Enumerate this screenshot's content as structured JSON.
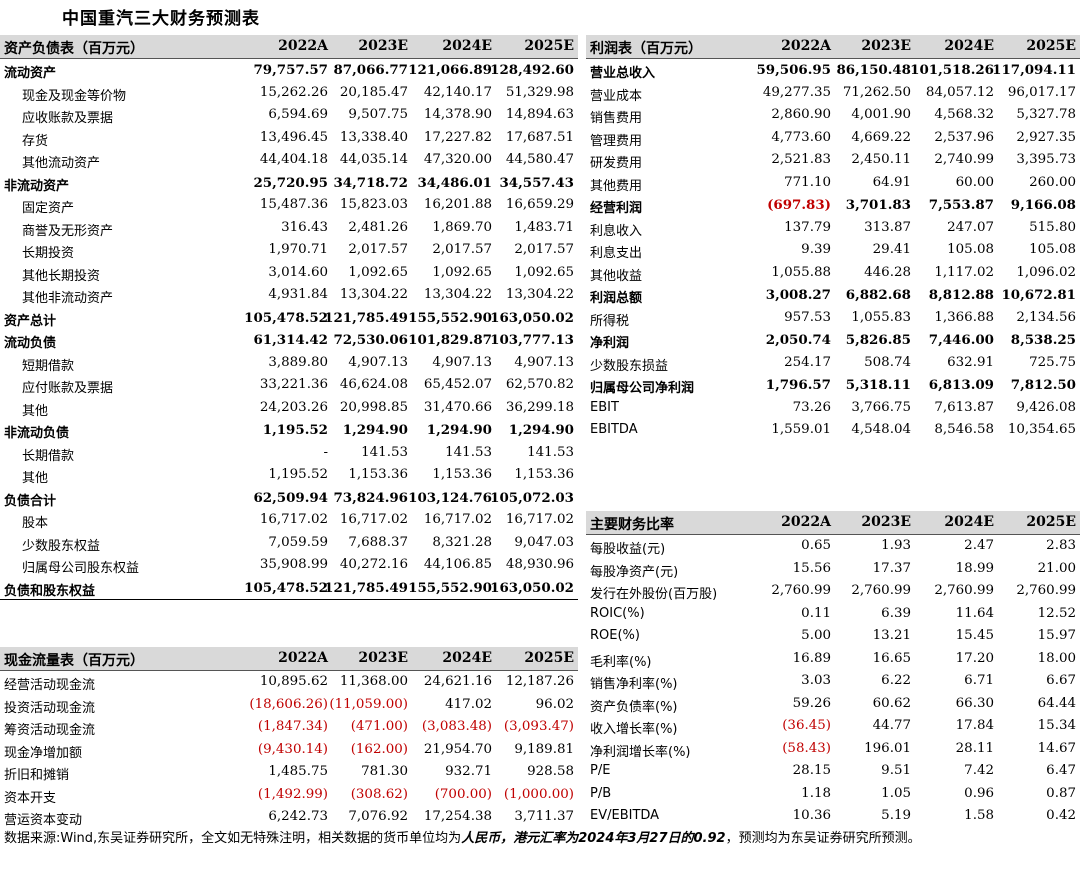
{
  "title": "中国重汽三大财务预测表",
  "balance": {
    "heading": "资产负债表（百万元）",
    "years": [
      "2022A",
      "2023E",
      "2024E",
      "2025E"
    ],
    "rows": [
      {
        "label": "流动资产",
        "bold": true,
        "ind": false,
        "v": [
          "79,757.57",
          "87,066.77",
          "121,066.89",
          "128,492.60"
        ]
      },
      {
        "label": "现金及现金等价物",
        "bold": false,
        "ind": true,
        "v": [
          "15,262.26",
          "20,185.47",
          "42,140.17",
          "51,329.98"
        ]
      },
      {
        "label": "应收账款及票据",
        "bold": false,
        "ind": true,
        "v": [
          "6,594.69",
          "9,507.75",
          "14,378.90",
          "14,894.63"
        ]
      },
      {
        "label": "存货",
        "bold": false,
        "ind": true,
        "v": [
          "13,496.45",
          "13,338.40",
          "17,227.82",
          "17,687.51"
        ]
      },
      {
        "label": "其他流动资产",
        "bold": false,
        "ind": true,
        "v": [
          "44,404.18",
          "44,035.14",
          "47,320.00",
          "44,580.47"
        ]
      },
      {
        "label": "非流动资产",
        "bold": true,
        "ind": false,
        "v": [
          "25,720.95",
          "34,718.72",
          "34,486.01",
          "34,557.43"
        ]
      },
      {
        "label": "固定资产",
        "bold": false,
        "ind": true,
        "v": [
          "15,487.36",
          "15,823.03",
          "16,201.88",
          "16,659.29"
        ]
      },
      {
        "label": "商誉及无形资产",
        "bold": false,
        "ind": true,
        "v": [
          "316.43",
          "2,481.26",
          "1,869.70",
          "1,483.71"
        ]
      },
      {
        "label": "长期投资",
        "bold": false,
        "ind": true,
        "v": [
          "1,970.71",
          "2,017.57",
          "2,017.57",
          "2,017.57"
        ]
      },
      {
        "label": "其他长期投资",
        "bold": false,
        "ind": true,
        "v": [
          "3,014.60",
          "1,092.65",
          "1,092.65",
          "1,092.65"
        ]
      },
      {
        "label": "其他非流动资产",
        "bold": false,
        "ind": true,
        "v": [
          "4,931.84",
          "13,304.22",
          "13,304.22",
          "13,304.22"
        ]
      },
      {
        "label": "资产总计",
        "bold": true,
        "ind": false,
        "v": [
          "105,478.52",
          "121,785.49",
          "155,552.90",
          "163,050.02"
        ]
      },
      {
        "label": "流动负债",
        "bold": true,
        "ind": false,
        "v": [
          "61,314.42",
          "72,530.06",
          "101,829.87",
          "103,777.13"
        ]
      },
      {
        "label": "短期借款",
        "bold": false,
        "ind": true,
        "v": [
          "3,889.80",
          "4,907.13",
          "4,907.13",
          "4,907.13"
        ]
      },
      {
        "label": "应付账款及票据",
        "bold": false,
        "ind": true,
        "v": [
          "33,221.36",
          "46,624.08",
          "65,452.07",
          "62,570.82"
        ]
      },
      {
        "label": "其他",
        "bold": false,
        "ind": true,
        "v": [
          "24,203.26",
          "20,998.85",
          "31,470.66",
          "36,299.18"
        ]
      },
      {
        "label": "非流动负债",
        "bold": true,
        "ind": false,
        "v": [
          "1,195.52",
          "1,294.90",
          "1,294.90",
          "1,294.90"
        ]
      },
      {
        "label": "长期借款",
        "bold": false,
        "ind": true,
        "v": [
          "-",
          "141.53",
          "141.53",
          "141.53"
        ]
      },
      {
        "label": "其他",
        "bold": false,
        "ind": true,
        "v": [
          "1,195.52",
          "1,153.36",
          "1,153.36",
          "1,153.36"
        ]
      },
      {
        "label": "负债合计",
        "bold": true,
        "ind": false,
        "v": [
          "62,509.94",
          "73,824.96",
          "103,124.76",
          "105,072.03"
        ]
      },
      {
        "label": "股本",
        "bold": false,
        "ind": true,
        "v": [
          "16,717.02",
          "16,717.02",
          "16,717.02",
          "16,717.02"
        ]
      },
      {
        "label": "少数股东权益",
        "bold": false,
        "ind": true,
        "v": [
          "7,059.59",
          "7,688.37",
          "8,321.28",
          "9,047.03"
        ]
      },
      {
        "label": "归属母公司股东权益",
        "bold": false,
        "ind": true,
        "v": [
          "35,908.99",
          "40,272.16",
          "44,106.85",
          "48,930.96"
        ]
      },
      {
        "label": "负债和股东权益",
        "bold": true,
        "ind": false,
        "v": [
          "105,478.52",
          "121,785.49",
          "155,552.90",
          "163,050.02"
        ]
      }
    ]
  },
  "income": {
    "heading": "利润表（百万元）",
    "years": [
      "2022A",
      "2023E",
      "2024E",
      "2025E"
    ],
    "rows": [
      {
        "label": "营业总收入",
        "bold": true,
        "v": [
          "59,506.95",
          "86,150.48",
          "101,518.26",
          "117,094.11"
        ]
      },
      {
        "label": "营业成本",
        "bold": false,
        "v": [
          "49,277.35",
          "71,262.50",
          "84,057.12",
          "96,017.17"
        ]
      },
      {
        "label": "销售费用",
        "bold": false,
        "v": [
          "2,860.90",
          "4,001.90",
          "4,568.32",
          "5,327.78"
        ]
      },
      {
        "label": "管理费用",
        "bold": false,
        "v": [
          "4,773.60",
          "4,669.22",
          "2,537.96",
          "2,927.35"
        ]
      },
      {
        "label": "研发费用",
        "bold": false,
        "v": [
          "2,521.83",
          "2,450.11",
          "2,740.99",
          "3,395.73"
        ]
      },
      {
        "label": "其他费用",
        "bold": false,
        "v": [
          "771.10",
          "64.91",
          "60.00",
          "260.00"
        ]
      },
      {
        "label": "经营利润",
        "bold": true,
        "v": [
          "(697.83)",
          "3,701.83",
          "7,553.87",
          "9,166.08"
        ]
      },
      {
        "label": "利息收入",
        "bold": false,
        "v": [
          "137.79",
          "313.87",
          "247.07",
          "515.80"
        ]
      },
      {
        "label": "利息支出",
        "bold": false,
        "v": [
          "9.39",
          "29.41",
          "105.08",
          "105.08"
        ]
      },
      {
        "label": "其他收益",
        "bold": false,
        "v": [
          "1,055.88",
          "446.28",
          "1,117.02",
          "1,096.02"
        ]
      },
      {
        "label": "利润总额",
        "bold": true,
        "v": [
          "3,008.27",
          "6,882.68",
          "8,812.88",
          "10,672.81"
        ]
      },
      {
        "label": "所得税",
        "bold": false,
        "v": [
          "957.53",
          "1,055.83",
          "1,366.88",
          "2,134.56"
        ]
      },
      {
        "label": "净利润",
        "bold": true,
        "v": [
          "2,050.74",
          "5,826.85",
          "7,446.00",
          "8,538.25"
        ]
      },
      {
        "label": "少数股东损益",
        "bold": false,
        "v": [
          "254.17",
          "508.74",
          "632.91",
          "725.75"
        ]
      },
      {
        "label": "归属母公司净利润",
        "bold": true,
        "v": [
          "1,796.57",
          "5,318.11",
          "6,813.09",
          "7,812.50"
        ]
      },
      {
        "label": "EBIT",
        "bold": false,
        "v": [
          "73.26",
          "3,766.75",
          "7,613.87",
          "9,426.08"
        ]
      },
      {
        "label": "EBITDA",
        "bold": false,
        "v": [
          "1,559.01",
          "4,548.04",
          "8,546.58",
          "10,354.65"
        ]
      }
    ]
  },
  "ratios": {
    "heading": "主要财务比率",
    "years": [
      "2022A",
      "2023E",
      "2024E",
      "2025E"
    ],
    "rows": [
      {
        "label": "每股收益(元)",
        "v": [
          "0.65",
          "1.93",
          "2.47",
          "2.83"
        ]
      },
      {
        "label": "每股净资产(元)",
        "v": [
          "15.56",
          "17.37",
          "18.99",
          "21.00"
        ]
      },
      {
        "label": "发行在外股份(百万股)",
        "v": [
          "2,760.99",
          "2,760.99",
          "2,760.99",
          "2,760.99"
        ]
      },
      {
        "label": "ROIC(%)",
        "v": [
          "0.11",
          "6.39",
          "11.64",
          "12.52"
        ]
      },
      {
        "label": "ROE(%)",
        "v": [
          "5.00",
          "13.21",
          "15.45",
          "15.97"
        ]
      },
      {
        "label": "毛利率(%)",
        "v": [
          "16.89",
          "16.65",
          "17.20",
          "18.00"
        ]
      },
      {
        "label": "销售净利率(%)",
        "v": [
          "3.03",
          "6.22",
          "6.71",
          "6.67"
        ]
      },
      {
        "label": "资产负债率(%)",
        "v": [
          "59.26",
          "60.62",
          "66.30",
          "64.44"
        ]
      },
      {
        "label": "收入增长率(%)",
        "v": [
          "(36.45)",
          "44.77",
          "17.84",
          "15.34"
        ]
      },
      {
        "label": "净利润增长率(%)",
        "v": [
          "(58.43)",
          "196.01",
          "28.11",
          "14.67"
        ]
      },
      {
        "label": "P/E",
        "v": [
          "28.15",
          "9.51",
          "7.42",
          "6.47"
        ]
      },
      {
        "label": "P/B",
        "v": [
          "1.18",
          "1.05",
          "0.96",
          "0.87"
        ]
      },
      {
        "label": "EV/EBITDA",
        "v": [
          "10.36",
          "5.19",
          "1.58",
          "0.42"
        ]
      }
    ]
  },
  "cashflow": {
    "heading": "现金流量表（百万元）",
    "years": [
      "2022A",
      "2023E",
      "2024E",
      "2025E"
    ],
    "rows": [
      {
        "label": "经营活动现金流",
        "v": [
          "10,895.62",
          "11,368.00",
          "24,621.16",
          "12,187.26"
        ]
      },
      {
        "label": "投资活动现金流",
        "v": [
          "(18,606.26)",
          "(11,059.00)",
          "417.02",
          "96.02"
        ]
      },
      {
        "label": "筹资活动现金流",
        "v": [
          "(1,847.34)",
          "(471.00)",
          "(3,083.48)",
          "(3,093.47)"
        ]
      },
      {
        "label": "现金净增加额",
        "v": [
          "(9,430.14)",
          "(162.00)",
          "21,954.70",
          "9,189.81"
        ]
      },
      {
        "label": "折旧和摊销",
        "v": [
          "1,485.75",
          "781.30",
          "932.71",
          "928.58"
        ]
      },
      {
        "label": "资本开支",
        "v": [
          "(1,492.99)",
          "(308.62)",
          "(700.00)",
          "(1,000.00)"
        ]
      },
      {
        "label": "营运资本变动",
        "v": [
          "6,242.73",
          "7,076.92",
          "17,254.38",
          "3,711.37"
        ]
      }
    ]
  },
  "source": {
    "pre": "数据来源:Wind,东吴证券研究所，全文如无特殊注明，相关数据的货币单位均为",
    "em1": "人民币，港元汇率为2024年3月27日的0.92",
    "post": "，预测均为东吴证券研究所预测。"
  }
}
